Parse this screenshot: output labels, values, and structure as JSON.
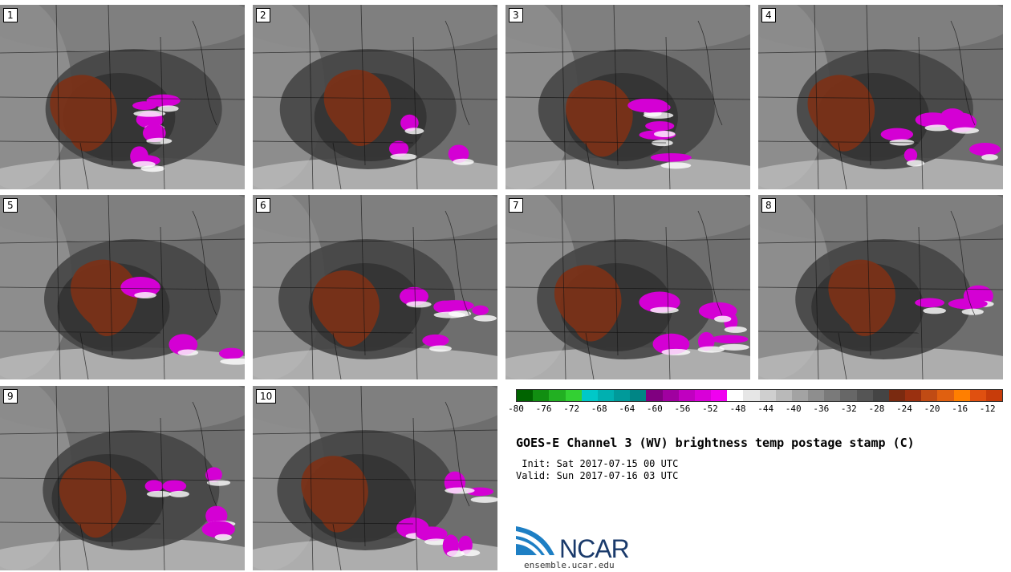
{
  "panels": [
    "1",
    "2",
    "3",
    "4",
    "5",
    "6",
    "7",
    "8",
    "9",
    "10"
  ],
  "colorbar": {
    "colors": [
      "#006400",
      "#118e11",
      "#22b022",
      "#33d033",
      "#00c8c8",
      "#00b0b0",
      "#009a9a",
      "#008585",
      "#800080",
      "#a000a0",
      "#c000c0",
      "#d800d8",
      "#f000f0",
      "#ffffff",
      "#e6e6e6",
      "#cfcfcf",
      "#b9b9b9",
      "#a3a3a3",
      "#8e8e8e",
      "#7a7a7a",
      "#676767",
      "#555555",
      "#444444",
      "#7a2a10",
      "#9a3010",
      "#c04b14",
      "#e06010",
      "#ff7f00",
      "#e05010",
      "#c83c0a"
    ],
    "ticks": [
      "-80",
      "-76",
      "-72",
      "-68",
      "-64",
      "-60",
      "-56",
      "-52",
      "-48",
      "-44",
      "-40",
      "-36",
      "-32",
      "-28",
      "-24",
      "-20",
      "-16",
      "-12"
    ]
  },
  "title": "GOES-E Channel 3 (WV) brightness temp postage stamp (C)",
  "init_line": " Init: Sat 2017-07-15 00 UTC",
  "valid_line": "Valid: Sun 2017-07-16 03 UTC",
  "logo_text": "NCAR",
  "url": "ensemble.ucar.edu"
}
